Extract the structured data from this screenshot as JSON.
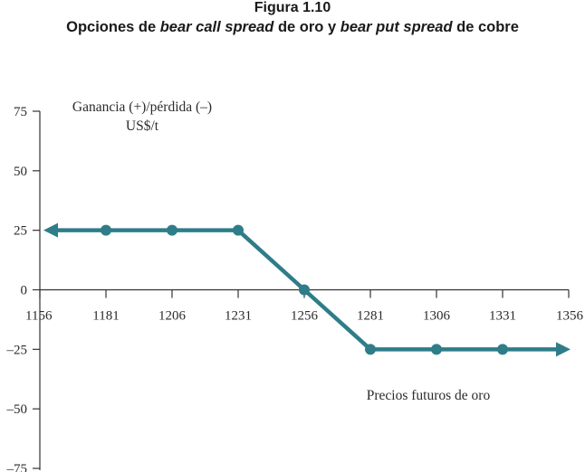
{
  "figure": {
    "number": "Figura 1.10",
    "caption_parts": [
      {
        "text": "Opciones de ",
        "italic": false
      },
      {
        "text": "bear call spread",
        "italic": true
      },
      {
        "text": " de oro y ",
        "italic": false
      },
      {
        "text": "bear put spread",
        "italic": true
      },
      {
        "text": " de cobre",
        "italic": false
      }
    ]
  },
  "chart_data": {
    "type": "line",
    "title": "Opciones de bear call spread de oro y bear put spread de cobre",
    "ylabel_line1": "Ganancia (+)/pérdida (–)",
    "ylabel_line2": "US$/t",
    "xlabel": "Precios futuros de oro",
    "x_ticks": [
      1156,
      1181,
      1206,
      1231,
      1256,
      1281,
      1306,
      1331,
      1356
    ],
    "x_tick_labels": [
      "1156",
      "1181",
      "1206",
      "1231",
      "1256",
      "1281",
      "1306",
      "1331",
      "1356"
    ],
    "y_ticks": [
      75,
      50,
      25,
      0,
      -25,
      -50,
      -75
    ],
    "y_tick_labels": [
      "75",
      "50",
      "25",
      "0",
      "–25",
      "–50",
      "–75"
    ],
    "xlim": [
      1156,
      1356
    ],
    "ylim": [
      -75,
      75
    ],
    "grid": false,
    "series": [
      {
        "x": [
          1156,
          1181,
          1206,
          1231,
          1256,
          1281,
          1306,
          1331,
          1356
        ],
        "y": [
          25,
          25,
          25,
          25,
          0,
          -25,
          -25,
          -25,
          -25
        ],
        "markers": [
          1181,
          1206,
          1231,
          1256,
          1281,
          1306,
          1331
        ],
        "arrow_ends": true
      }
    ],
    "colors": {
      "line": "#2e7d89",
      "axis": "#333333"
    }
  }
}
